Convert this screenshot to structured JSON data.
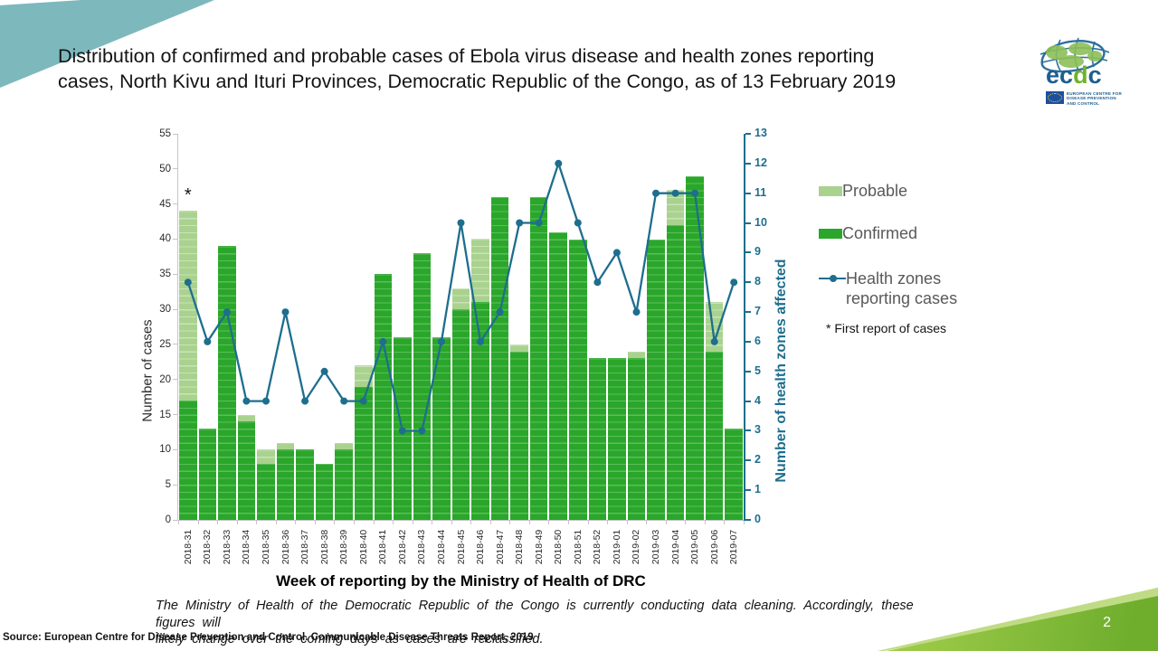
{
  "slide": {
    "title_lines": [
      "Distribution of confirmed and probable cases of Ebola virus disease and health zones reporting",
      "cases, North Kivu and Ituri Provinces, Democratic Republic of the Congo, as of 13 February 2019"
    ],
    "note_lines": [
      "The Ministry of Health of the Democratic Republic of the Congo is currently conducting data cleaning. Accordingly, these figures will",
      "likely change over the coming days as cases are reclassified."
    ],
    "source": "Source: European Centre for Disease Prevention and Control. Communicable Disease Threats Report, 2019",
    "page_number": "2",
    "accent_colors": {
      "top_left_wedge": "#7db8bd",
      "bottom_right_wedge": "#8cc63f"
    }
  },
  "logo": {
    "letters": [
      "e",
      "c",
      "d",
      "c"
    ],
    "caption_lines": [
      "EUROPEAN CENTRE FOR",
      "DISEASE PREVENTION",
      "AND CONTROL"
    ]
  },
  "legend": {
    "items": [
      {
        "label": "Probable"
      },
      {
        "label": "Confirmed"
      },
      {
        "label_lines": [
          "Health zones",
          "reporting cases"
        ]
      }
    ]
  },
  "chart_data": {
    "type": "bar",
    "subtype": "stacked-bars-with-line",
    "categories": [
      "2018-31",
      "2018-32",
      "2018-33",
      "2018-34",
      "2018-35",
      "2018-36",
      "2018-37",
      "2018-38",
      "2018-39",
      "2018-40",
      "2018-41",
      "2018-42",
      "2018-43",
      "2018-44",
      "2018-45",
      "2018-46",
      "2018-47",
      "2018-48",
      "2018-49",
      "2018-50",
      "2018-51",
      "2018-52",
      "2019-01",
      "2019-02",
      "2019-03",
      "2019-04",
      "2019-05",
      "2019-06",
      "2019-07"
    ],
    "series": [
      {
        "name": "Confirmed",
        "type": "bar",
        "color": "#2aa72a",
        "values": [
          17,
          13,
          39,
          14,
          8,
          10,
          10,
          8,
          10,
          19,
          35,
          26,
          38,
          26,
          30,
          31,
          46,
          24,
          46,
          41,
          40,
          23,
          23,
          23,
          40,
          42,
          49,
          24,
          13
        ]
      },
      {
        "name": "Probable",
        "type": "bar",
        "stacked_on": "Confirmed",
        "color": "#a9d28e",
        "values": [
          27,
          0,
          0,
          1,
          2,
          1,
          0,
          0,
          1,
          3,
          0,
          0,
          0,
          0,
          3,
          9,
          0,
          1,
          0,
          0,
          0,
          0,
          0,
          1,
          0,
          5,
          0,
          7,
          0
        ]
      },
      {
        "name": "Health zones reporting cases",
        "type": "line",
        "axis": "right",
        "color": "#1e6e8e",
        "values": [
          8,
          6,
          7,
          4,
          4,
          7,
          4,
          5,
          4,
          4,
          6,
          3,
          3,
          6,
          10,
          6,
          7,
          10,
          10,
          12,
          10,
          8,
          9,
          7,
          11,
          11,
          11,
          6,
          8
        ]
      }
    ],
    "left_axis": {
      "label": "Number of cases",
      "min": 0,
      "max": 55,
      "step": 5
    },
    "right_axis": {
      "label": "Number of health zones affected",
      "min": 0,
      "max": 13,
      "step": 1,
      "color": "#1e6e8e"
    },
    "xlabel": "Week of reporting by the Ministry of Health of DRC",
    "annotations": [
      {
        "category": "2018-31",
        "text": "*"
      }
    ],
    "footnote": "* First report of cases",
    "grid": "horizontal-unit-lines-over-bars",
    "legend_position": "right"
  }
}
